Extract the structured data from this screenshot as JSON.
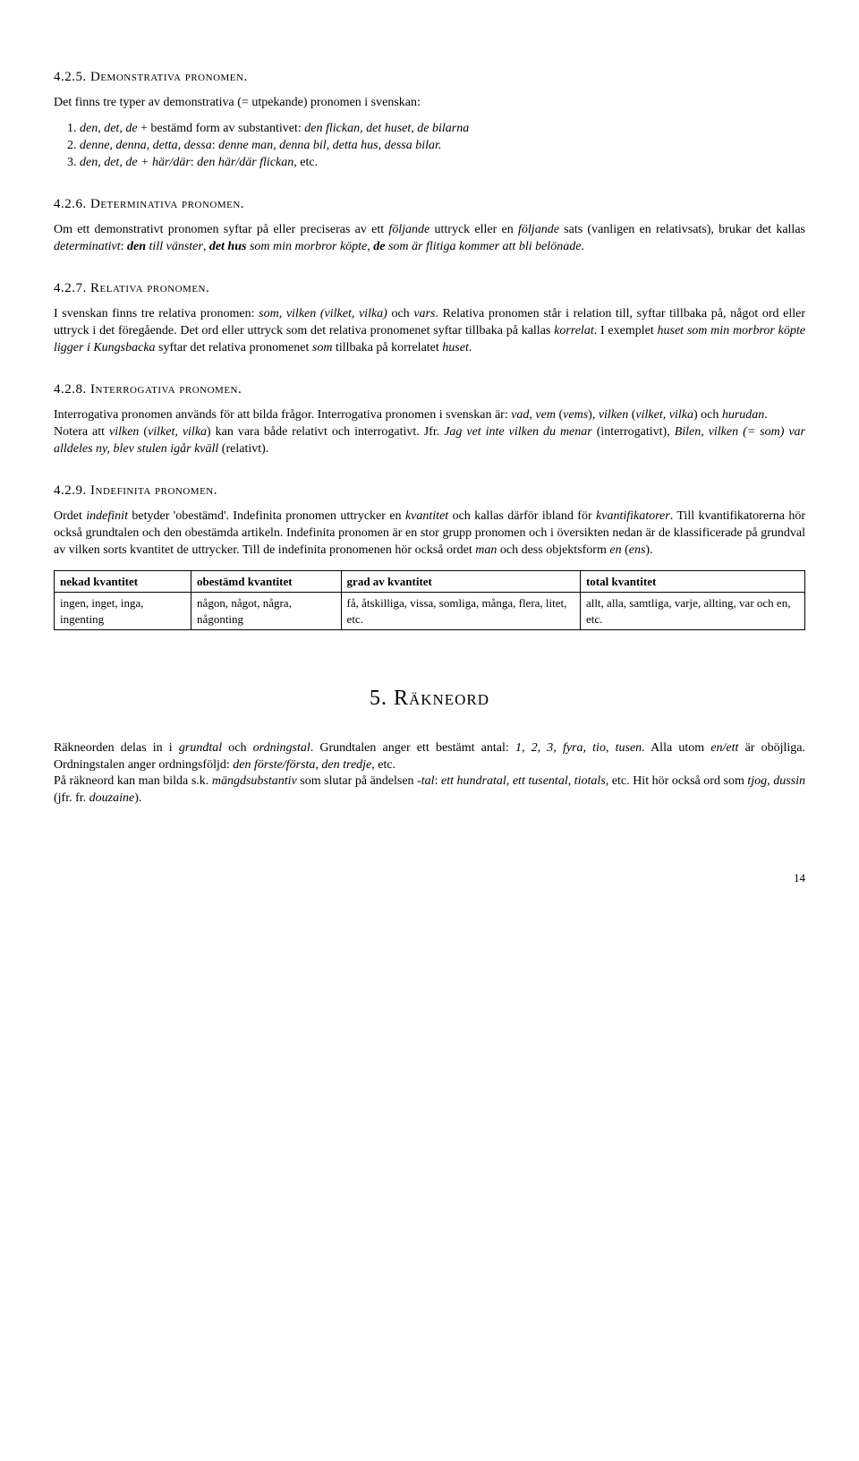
{
  "s425": {
    "heading": "4.2.5. Demonstrativa pronomen.",
    "intro": "Det finns tre typer av demonstrativa (= utpekande) pronomen i svenskan:",
    "items": [
      "1. <i>den, det, de</i> + bestämd form av substantivet: <i>den flickan, det huset, de bilarna</i>",
      "2. <i>denne, denna, detta, dessa</i>: <i>denne man, denna bil, detta hus, dessa bilar.</i>",
      "3. <i>den, det, de + här/där</i>: <i>den här/där flickan</i>, etc."
    ]
  },
  "s426": {
    "heading": "4.2.6. Determinativa pronomen.",
    "body": "Om ett demonstrativt pronomen syftar på eller preciseras av ett <i>följande</i> uttryck eller en <i>följande</i> sats (vanligen en relativsats), brukar det kallas <i>determinativt</i>: <i><b>den</b> till vänster</i>, <i><b>det hus</b> som min morbror köpte</i>, <i><b>de</b> som är flitiga kommer att bli belönade</i>."
  },
  "s427": {
    "heading": "4.2.7. Relativa pronomen.",
    "body": "I svenskan finns tre relativa pronomen: <i>som, vilken (vilket, vilka)</i> och <i>vars</i>. Relativa pronomen står i relation till, syftar tillbaka på, något ord eller uttryck i det föregående. Det ord eller uttryck som det relativa pronomenet syftar tillbaka på kallas <i>korrelat</i>. I exemplet <i>huset som min morbror köpte ligger i Kungsbacka</i> syftar det relativa pronomenet <i>som</i> tillbaka på korrelatet <i>huset</i>."
  },
  "s428": {
    "heading": "4.2.8. Interrogativa pronomen.",
    "body1": "Interrogativa pronomen används för att bilda frågor. Interrogativa pronomen i svenskan är: <i>vad, vem</i> (<i>vems</i>), <i>vilken</i> (<i>vilket, vilka</i>) och <i>hurudan</i>.",
    "body2": "Notera att <i>vilken</i> (<i>vilket, vilka</i>) kan vara både relativt och interrogativt. Jfr. <i>Jag vet inte vilken du menar</i> (interrogativt), <i>Bilen, vilken (= som) var alldeles ny, blev stulen igår kväll</i> (relativt)."
  },
  "s429": {
    "heading": "4.2.9. Indefinita pronomen.",
    "body": "Ordet <i>indefinit</i> betyder 'obestämd'. Indefinita pronomen uttrycker en <i>kvantitet</i> och kallas därför ibland för <i>kvantifikatorer</i>. Till kvantifikatorerna hör också grundtalen och den obestämda artikeln. Indefinita pronomen är en stor grupp pronomen och i översikten nedan är de klassificerade på grundval av vilken sorts kvantitet de uttrycker. Till de indefinita pronomenen hör också ordet <i>man</i> och dess objektsform <i>en</i> (<i>ens</i>).",
    "table": {
      "headers": [
        "nekad kvantitet",
        "obestämd kvantitet",
        "grad av kvantitet",
        "total kvantitet"
      ],
      "row": [
        "ingen, inget, inga, ingenting",
        "någon, något, några, någonting",
        "få, åtskilliga, vissa, somliga, många, flera, litet, etc.",
        "allt, alla, samtliga, varje, allting, var och en, etc."
      ]
    }
  },
  "chapter5": {
    "heading": "5. Räkneord",
    "p1": "Räkneorden delas in i <i>grundtal</i> och <i>ordningstal</i>. Grundtalen anger ett bestämt antal: <i>1, 2, 3, fyra, tio, tusen</i>. Alla utom <i>en/ett</i> är oböjliga. Ordningstalen anger ordningsföljd: <i>den förste/första, den tredje</i>, etc.",
    "p2": "På räkneord kan man bilda s.k. <i>mängdsubstantiv</i> som slutar på ändelsen <i>-tal</i>: <i>ett hundratal, ett tusental, tiotals</i>, etc. Hit hör också ord som <i>tjog, dussin</i> (jfr. fr. <i>douzaine</i>)."
  },
  "pageNumber": "14"
}
